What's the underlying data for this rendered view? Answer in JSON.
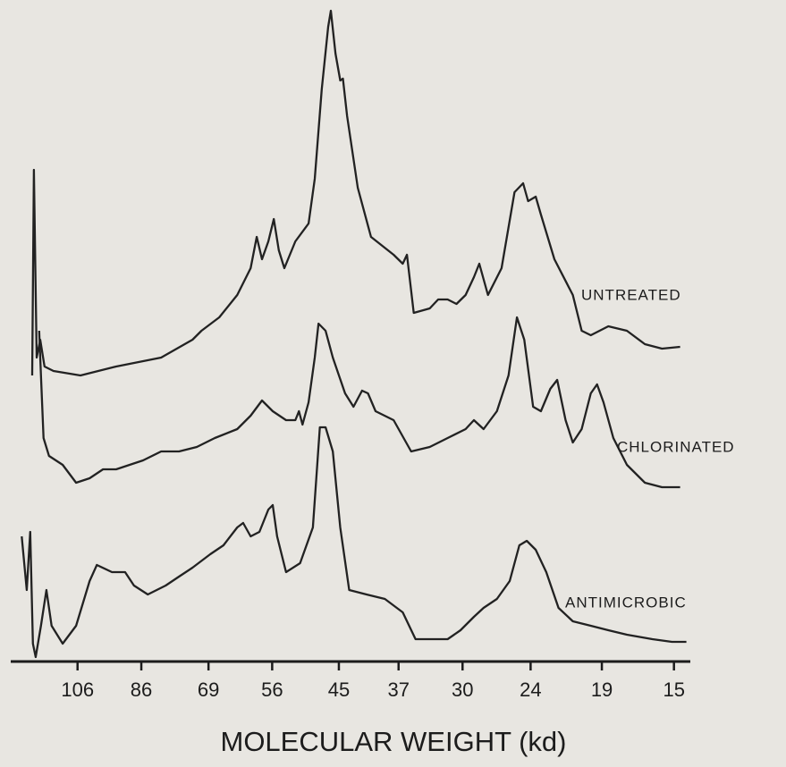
{
  "chart_data": {
    "type": "line",
    "xlabel": "MOLECULAR WEIGHT  (kd)",
    "xscale": "log",
    "xlim": [
      128.9,
      14.3
    ],
    "ylim": [
      0,
      730
    ],
    "xticks": [
      106,
      86,
      69,
      56,
      45,
      37,
      30,
      24,
      19,
      15
    ],
    "grid": false,
    "series": [
      {
        "name": "UNTREATED",
        "color": "#222222",
        "x": [
          123.0,
          122.3,
          121.2,
          119.8,
          118.1,
          114.7,
          105.0,
          93.4,
          80.6,
          72.7,
          70.6,
          66.6,
          62.8,
          60.1,
          58.9,
          57.9,
          56.7,
          55.7,
          54.8,
          53.8,
          51.9,
          49.7,
          48.7,
          47.6,
          46.6,
          46.2,
          45.5,
          44.8,
          44.4,
          43.8,
          42.3,
          40.5,
          37.6,
          36.5,
          36.0,
          35.2,
          33.4,
          32.5,
          31.5,
          30.6,
          29.7,
          28.9,
          28.4,
          27.6,
          26.4,
          25.3,
          24.6,
          24.2,
          23.6,
          23.2,
          22.2,
          20.9,
          20.3,
          19.7,
          18.6,
          17.5,
          16.5,
          15.6,
          14.7
        ],
        "values": [
          320,
          550,
          340,
          360,
          330,
          325,
          320,
          330,
          340,
          360,
          370,
          385,
          410,
          440,
          475,
          450,
          470,
          495,
          460,
          440,
          470,
          490,
          540,
          640,
          710,
          728,
          680,
          650,
          652,
          610,
          530,
          475,
          455,
          445,
          455,
          390,
          395,
          405,
          405,
          400,
          410,
          430,
          445,
          410,
          440,
          525,
          535,
          515,
          520,
          500,
          450,
          410,
          370,
          365,
          375,
          370,
          355,
          350,
          352
        ]
      },
      {
        "name": "CHLORINATED",
        "color": "#222222",
        "x": [
          120.2,
          119.5,
          118.5,
          116.4,
          111.3,
          106.5,
          101.9,
          97.5,
          93.4,
          85.5,
          80.6,
          76.0,
          71.7,
          67.6,
          62.8,
          60.1,
          57.9,
          55.9,
          53.5,
          51.9,
          51.3,
          50.7,
          49.7,
          48.7,
          48.1,
          47.0,
          45.9,
          44.1,
          42.9,
          41.7,
          40.9,
          39.9,
          37.6,
          35.5,
          33.4,
          31.5,
          29.7,
          28.9,
          28.0,
          26.8,
          25.8,
          25.1,
          24.5,
          23.8,
          23.2,
          22.5,
          22.0,
          21.4,
          20.9,
          20.3,
          19.7,
          19.3,
          18.9,
          18.3,
          17.5,
          16.5,
          15.6,
          14.7
        ],
        "values": [
          370,
          320,
          250,
          230,
          220,
          200,
          205,
          215,
          215,
          225,
          235,
          235,
          240,
          250,
          260,
          275,
          292,
          280,
          270,
          270,
          280,
          265,
          290,
          340,
          378,
          370,
          340,
          300,
          285,
          303,
          300,
          280,
          270,
          235,
          240,
          250,
          260,
          270,
          260,
          280,
          320,
          385,
          360,
          285,
          280,
          305,
          315,
          270,
          245,
          260,
          300,
          310,
          290,
          250,
          220,
          200,
          195,
          195
        ]
      },
      {
        "name": "ANTIMICROBIC",
        "color": "#222222",
        "x": [
          127.3,
          125.2,
          123.8,
          122.7,
          121.6,
          119.5,
          117.4,
          115.4,
          111.3,
          106.5,
          101.9,
          99.5,
          94.7,
          90.7,
          88.1,
          84.2,
          79.4,
          76.0,
          72.7,
          68.6,
          65.7,
          62.8,
          61.6,
          60.1,
          58.4,
          56.7,
          55.9,
          55.1,
          53.5,
          51.1,
          49.0,
          47.9,
          47.0,
          45.9,
          44.8,
          43.5,
          41.1,
          38.7,
          36.5,
          35.0,
          33.4,
          31.5,
          30.2,
          28.9,
          28.0,
          26.8,
          25.7,
          24.9,
          24.3,
          23.6,
          22.8,
          21.9,
          20.9,
          19.7,
          18.6,
          17.5,
          16.1,
          15.1,
          14.4
        ],
        "values": [
          140,
          80,
          145,
          20,
          5,
          40,
          80,
          40,
          20,
          40,
          90,
          108,
          100,
          100,
          85,
          75,
          85,
          95,
          105,
          120,
          130,
          150,
          155,
          140,
          145,
          170,
          175,
          140,
          100,
          110,
          150,
          262,
          262,
          235,
          150,
          80,
          75,
          70,
          55,
          25,
          25,
          25,
          35,
          50,
          60,
          70,
          90,
          130,
          135,
          125,
          100,
          60,
          45,
          40,
          35,
          30,
          25,
          22,
          22
        ]
      }
    ]
  }
}
